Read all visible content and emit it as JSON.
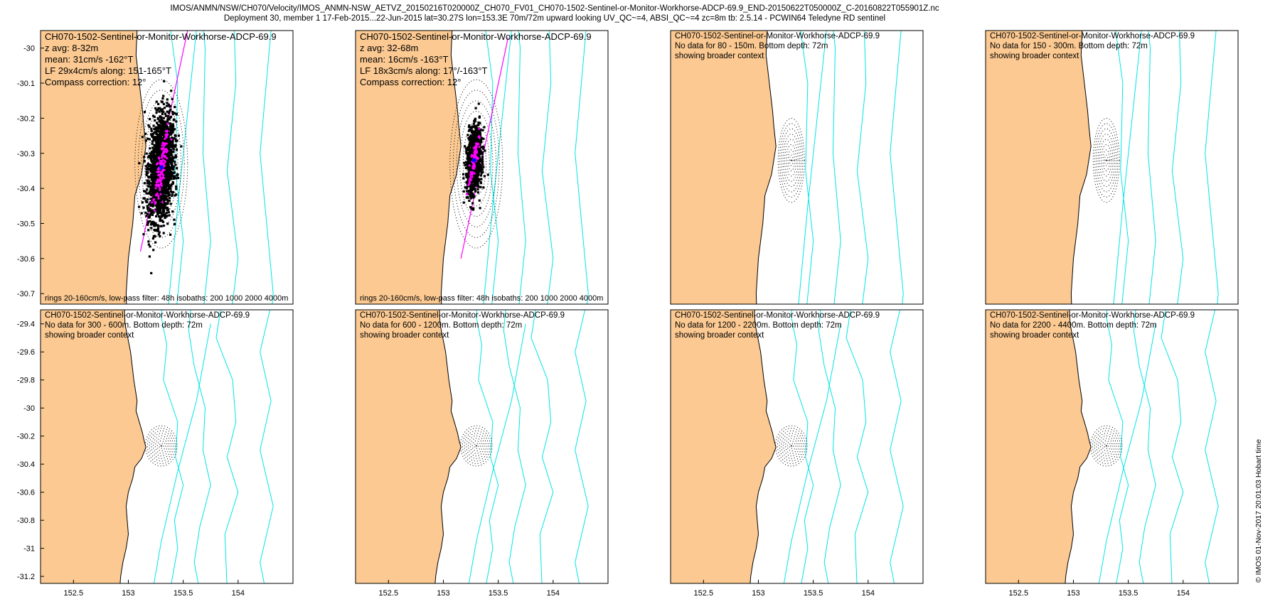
{
  "header": {
    "line1": "IMOS/ANMN/NSW/CH070/Velocity/IMOS_ANMN-NSW_AETVZ_20150216T020000Z_CH070_FV01_CH070-1502-Sentinel-or-Monitor-Workhorse-ADCP-69.9_END-20150622T050000Z_C-20160822T055901Z.nc",
    "line2": "Deployment 30, member 1 17-Feb-2015...22-Jun-2015 lat=30.27S lon=153.3E 70m/72m upward looking UV_QC~=4, ABSI_QC~=4 zc=8m tb: 2.5.14 - PCWIN64 Teledyne RD sentinel"
  },
  "stamp": "© IMOS 01-Nov-2017 20:01:03 Hobart time",
  "colors": {
    "land": "#fbc991",
    "isobath": "#00e5e5",
    "scatter": "#000000",
    "lowpass": "#ff00ff",
    "mean": "#0000ff"
  },
  "chart_data": [
    {
      "type": "scatter",
      "id": "p1",
      "title": "CH070-1502-Sentinel-or-Monitor-Workhorse-ADCP-69.9",
      "info": [
        "z avg: 8-32m",
        "mean: 31cm/s -162°T",
        "LF 29x4cm/s along: 151-165°T",
        "Compass correction: 12°"
      ],
      "footer": "rings 20-160cm/s, low-pass filter: 48h isobaths: 200 1000 2000 4000m",
      "xlim": [
        152.2,
        154.5
      ],
      "ylim": [
        -30.73,
        -29.95
      ],
      "xticks": [],
      "yticks": [
        -30,
        -30.1,
        -30.2,
        -30.3,
        -30.4,
        -30.5,
        -30.6,
        -30.7
      ],
      "rings": {
        "center": [
          153.3,
          -30.33
        ],
        "count": 8,
        "spacing_deg": 0.03
      },
      "principal_axis": [
        [
          153.11,
          -30.58
        ],
        [
          153.54,
          -29.95
        ]
      ],
      "scatter": {
        "center": [
          153.3,
          -30.34
        ],
        "sx": 0.06,
        "sy": 0.075,
        "n": 2000
      },
      "lowpass": {
        "center": [
          153.3,
          -30.34
        ],
        "sx": 0.03,
        "sy": 0.05,
        "n": 140
      },
      "has_data": true
    },
    {
      "type": "scatter",
      "id": "p2",
      "title": "CH070-1502-Sentinel-or-Monitor-Workhorse-ADCP-69.9",
      "info": [
        "z avg: 32-68m",
        "mean: 16cm/s -163°T",
        "LF 18x3cm/s along: 17°/-163°T",
        "Compass correction: 12°"
      ],
      "footer": "rings 20-160cm/s, low-pass filter: 48h isobaths: 200 1000 2000 4000m",
      "xlim": [
        152.2,
        154.5
      ],
      "ylim": [
        -30.73,
        -29.95
      ],
      "xticks": [],
      "yticks": [],
      "rings": {
        "center": [
          153.3,
          -30.33
        ],
        "count": 8,
        "spacing_deg": 0.03
      },
      "principal_axis": [
        [
          153.16,
          -30.6
        ],
        [
          153.59,
          -29.97
        ]
      ],
      "scatter": {
        "center": [
          153.28,
          -30.32
        ],
        "sx": 0.035,
        "sy": 0.045,
        "n": 1200
      },
      "lowpass": {
        "center": [
          153.28,
          -30.32
        ],
        "sx": 0.02,
        "sy": 0.035,
        "n": 100
      },
      "has_data": true
    },
    {
      "type": "scatter",
      "id": "p3",
      "title": "CH070-1502-Sentinel-or-Monitor-Workhorse-ADCP-69.9",
      "info": [
        "No data for 80 - 150m. Bottom depth: 72m",
        "showing broader context"
      ],
      "footer": "",
      "xlim": [
        152.2,
        154.5
      ],
      "ylim": [
        -30.73,
        -29.95
      ],
      "xticks": [],
      "yticks": [],
      "rings": {
        "center": [
          153.3,
          -30.32
        ],
        "count": 8,
        "spacing_deg": 0.015
      },
      "has_data": false
    },
    {
      "type": "scatter",
      "id": "p4",
      "title": "CH070-1502-Sentinel-or-Monitor-Workhorse-ADCP-69.9",
      "info": [
        "No data for 150 - 300m. Bottom depth: 72m",
        "showing broader context"
      ],
      "footer": "",
      "xlim": [
        152.2,
        154.5
      ],
      "ylim": [
        -30.73,
        -29.95
      ],
      "xticks": [],
      "yticks": [],
      "rings": {
        "center": [
          153.3,
          -30.32
        ],
        "count": 8,
        "spacing_deg": 0.015
      },
      "has_data": false
    },
    {
      "type": "scatter",
      "id": "p5",
      "title": "CH070-1502-Sentinel-or-Monitor-Workhorse-ADCP-69.9",
      "info": [
        "No data for 300 - 600m. Bottom depth: 72m",
        "showing broader context"
      ],
      "footer": "",
      "xlim": [
        152.2,
        154.5
      ],
      "ylim": [
        -31.25,
        -29.3
      ],
      "xticks": [
        152.5,
        153,
        153.5,
        154
      ],
      "yticks": [
        -29.4,
        -29.6,
        -29.8,
        -30,
        -30.2,
        -30.4,
        -30.6,
        -30.8,
        -31,
        -31.2
      ],
      "rings": {
        "center": [
          153.3,
          -30.27
        ],
        "count": 8,
        "spacing_deg": 0.018
      },
      "has_data": false
    },
    {
      "type": "scatter",
      "id": "p6",
      "title": "CH070-1502-Sentinel-or-Monitor-Workhorse-ADCP-69.9",
      "info": [
        "No data for 600 - 1200m. Bottom depth: 72m",
        "showing broader context"
      ],
      "footer": "",
      "xlim": [
        152.2,
        154.5
      ],
      "ylim": [
        -31.25,
        -29.3
      ],
      "xticks": [
        152.5,
        153,
        153.5,
        154
      ],
      "yticks": [],
      "rings": {
        "center": [
          153.3,
          -30.27
        ],
        "count": 8,
        "spacing_deg": 0.018
      },
      "has_data": false
    },
    {
      "type": "scatter",
      "id": "p7",
      "title": "CH070-1502-Sentinel-or-Monitor-Workhorse-ADCP-69.9",
      "info": [
        "No data for 1200 - 2200m. Bottom depth: 72m",
        "showing broader context"
      ],
      "footer": "",
      "xlim": [
        152.2,
        154.5
      ],
      "ylim": [
        -31.25,
        -29.3
      ],
      "xticks": [
        152.5,
        153,
        153.5,
        154
      ],
      "yticks": [],
      "rings": {
        "center": [
          153.3,
          -30.27
        ],
        "count": 8,
        "spacing_deg": 0.018
      },
      "has_data": false
    },
    {
      "type": "scatter",
      "id": "p8",
      "title": "CH070-1502-Sentinel-or-Monitor-Workhorse-ADCP-69.9",
      "info": [
        "No data for 2200 - 4400m. Bottom depth: 72m",
        "showing broader context"
      ],
      "footer": "",
      "xlim": [
        152.2,
        154.5
      ],
      "ylim": [
        -31.25,
        -29.3
      ],
      "xticks": [
        152.5,
        153,
        153.5,
        154
      ],
      "yticks": [],
      "rings": {
        "center": [
          153.3,
          -30.27
        ],
        "count": 8,
        "spacing_deg": 0.018
      },
      "has_data": false
    }
  ]
}
